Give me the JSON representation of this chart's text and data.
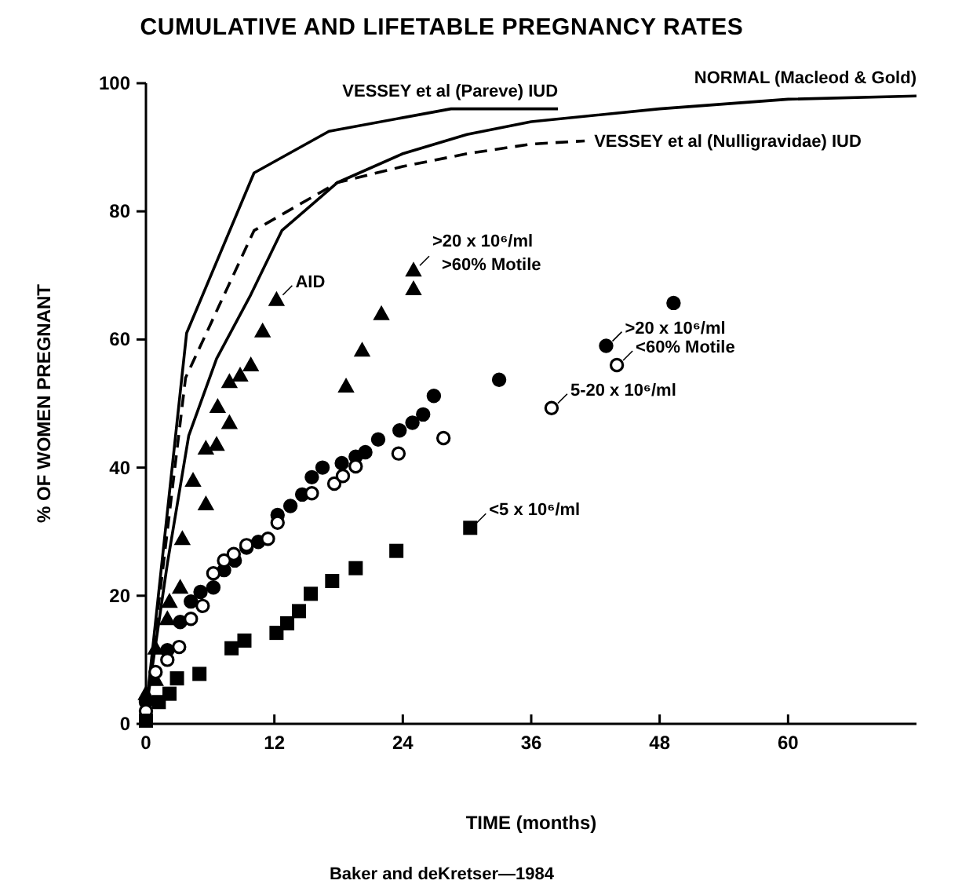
{
  "chart_data": {
    "type": "line",
    "title": "CUMULATIVE AND LIFETABLE PREGNANCY RATES",
    "xlabel": "TIME (months)",
    "ylabel": "% OF WOMEN PREGNANT",
    "xlim": [
      0,
      72
    ],
    "xticks": [
      0,
      12,
      24,
      36,
      48,
      60
    ],
    "ylim": [
      0,
      100
    ],
    "yticks": [
      0,
      20,
      40,
      60,
      80,
      100
    ],
    "grid": false,
    "series": [
      {
        "name": "VESSEY et al (Pareve) IUD",
        "color": "#000000",
        "line_style": "solid",
        "x": [
          0,
          3.8,
          10.1,
          17.1,
          28.5,
          38.5
        ],
        "values": [
          2,
          61,
          86,
          92.5,
          96,
          96
        ]
      },
      {
        "name": "NORMAL (Macleod & Gold)",
        "color": "#000000",
        "line_style": "solid",
        "x": [
          0,
          2,
          4,
          6.6,
          9.8,
          12.7,
          17.9,
          24,
          30,
          36,
          48,
          60,
          72
        ],
        "values": [
          2,
          25,
          45,
          57,
          67,
          77,
          84.5,
          89,
          92,
          94,
          96,
          97.5,
          98
        ]
      },
      {
        "name": "VESSEY et al (Nulligravidae) IUD",
        "color": "#000000",
        "line_style": "dashed",
        "x": [
          0,
          3.7,
          10.1,
          17.9,
          24,
          30,
          36,
          41
        ],
        "values": [
          2,
          54,
          77,
          84.5,
          87,
          89,
          90.5,
          91
        ]
      },
      {
        "type": "scatter",
        "marker": "triangle",
        "color": "#000000",
        "x": [
          0,
          0.9,
          2.2,
          3.4,
          4.4,
          5.6,
          6.7,
          7.8,
          8.8,
          9.8,
          10.9,
          12.2
        ],
        "values": [
          4.7,
          11.8,
          19.1,
          28.9,
          38,
          43,
          49.5,
          53.4,
          54.4,
          56,
          61.3,
          66.2
        ]
      },
      {
        "type": "scatter",
        "marker": "triangle",
        "color": "#000000",
        "x": [
          0.9,
          2.0,
          3.2,
          5.6,
          6.6,
          7.8,
          18.7,
          20.2,
          22,
          25,
          25
        ],
        "values": [
          6.9,
          16.4,
          21.3,
          34.3,
          43.6,
          47,
          52.7,
          58.3,
          64,
          67.9,
          70.8
        ]
      },
      {
        "type": "scatter",
        "marker": "circle",
        "color": "#000000",
        "x": [
          0,
          2.0,
          3.2,
          4.2,
          5.1,
          6.3,
          7.3,
          8.3,
          9.4,
          10.5,
          12.3,
          13.5,
          14.6,
          15.5,
          16.5,
          18.3,
          19.6,
          20.5,
          21.7,
          23.7,
          24.9,
          25.9,
          26.9,
          33,
          43,
          49.3
        ],
        "values": [
          3.4,
          11.5,
          15.9,
          19.1,
          20.6,
          21.3,
          24,
          25.5,
          27.5,
          28.4,
          32.6,
          34,
          35.8,
          38.5,
          40,
          40.7,
          41.7,
          42.4,
          44.4,
          45.8,
          47,
          48.3,
          51.2,
          53.7,
          59,
          65.7
        ]
      },
      {
        "type": "scatter",
        "marker": "circle",
        "color": "#ffffff",
        "x": [
          0,
          0.9,
          2.0,
          3.1,
          4.2,
          5.3,
          6.3,
          7.3,
          8.2,
          9.4,
          11.4,
          12.3,
          15.5,
          17.6,
          18.4,
          19.6,
          23.6,
          27.8,
          37.9,
          44
        ],
        "values": [
          2,
          8.1,
          10,
          12,
          16.4,
          18.4,
          23.5,
          25.5,
          26.5,
          27.9,
          28.9,
          31.4,
          36,
          37.5,
          38.7,
          40.2,
          42.2,
          44.6,
          49.3,
          56
        ]
      },
      {
        "type": "scatter",
        "marker": "square",
        "color": "#000000",
        "x": [
          0,
          1.2,
          2.2,
          2.9,
          5,
          8,
          9.2,
          12.2,
          13.2,
          14.3,
          15.4,
          17.4,
          19.6,
          23.4,
          30.3
        ],
        "values": [
          0.5,
          3.4,
          4.7,
          7.1,
          7.8,
          11.8,
          13,
          14.2,
          15.7,
          17.6,
          20.3,
          22.3,
          24.3,
          27,
          30.6
        ]
      }
    ],
    "annotations": [
      {
        "text": "AID",
        "x": 12.2,
        "y": 66.2
      },
      {
        "text": ">20 x 10⁶/ml >60% Motile",
        "x": 25,
        "y": 70.8
      },
      {
        "text": ">20 x 10⁶/ml",
        "x": 43,
        "y": 59
      },
      {
        "text": "<60% Motile",
        "x": 44,
        "y": 56
      },
      {
        "text": "5-20 x 10⁶/ml",
        "x": 37.9,
        "y": 49.3
      },
      {
        "text": "<5 x 10⁶/ml",
        "x": 30.3,
        "y": 30.6
      },
      "Baker and deKretser—1984"
    ]
  }
}
